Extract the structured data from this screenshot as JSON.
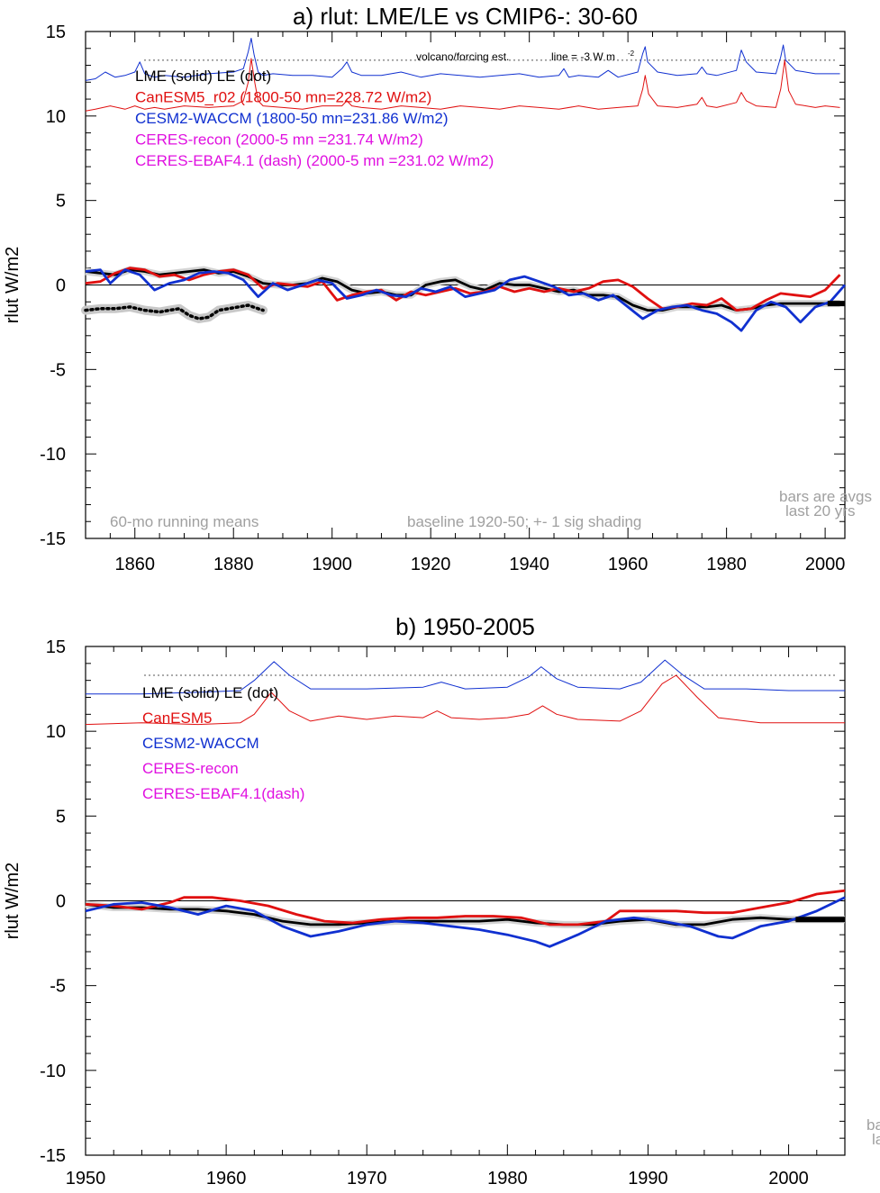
{
  "chart_data": [
    {
      "type": "line",
      "title": "a) rlut: LME/LE vs CMIP6-: 30-60",
      "ylabel": "rlut W/m2",
      "xlim": [
        1850,
        2004
      ],
      "ylim": [
        -15,
        15
      ],
      "xticks": [
        1860,
        1880,
        1900,
        1920,
        1940,
        1960,
        1980,
        2000
      ],
      "yticks": [
        15,
        10,
        5,
        0,
        -5,
        -10,
        -15
      ],
      "ytick_labels": [
        "15",
        "10",
        "5",
        "0",
        "-5",
        "-10",
        "-15"
      ],
      "legend": [
        {
          "text": "LME (solid)   LE (dot)",
          "color": "#000000"
        },
        {
          "text": "CanESM5_r02 (1800-50 mn=228.72 W/m2)",
          "color": "#e01010"
        },
        {
          "text": "CESM2-WACCM (1800-50 mn=231.86 W/m2)",
          "color": "#1030d0"
        },
        {
          "text": "CERES-recon (2000-5 mn =231.74 W/m2)",
          "color": "#e010e0"
        },
        {
          "text": "CERES-EBAF4.1 (dash) (2000-5 mn =231.02 W/m2)",
          "color": "#e010e0"
        }
      ],
      "annotations": {
        "volcano": "volcano/forcing est.",
        "line_note": "line = -3 W m",
        "line_note_sup": "-2",
        "running": "60-mo running means",
        "baseline": "baseline 1920-50; +- 1 sig shading",
        "bars1": "bars are avgs",
        "bars2": "last 20 yrs"
      },
      "forcing_line_y": 13.3,
      "series": [
        {
          "name": "LME (solid)",
          "color": "#000000",
          "x": [
            1850,
            1853,
            1856,
            1859,
            1862,
            1865,
            1868,
            1871,
            1874,
            1877,
            1880,
            1883,
            1886,
            1889,
            1892,
            1895,
            1898,
            1901,
            1904,
            1907,
            1910,
            1913,
            1916,
            1919,
            1922,
            1925,
            1928,
            1931,
            1934,
            1937,
            1940,
            1943,
            1946,
            1949,
            1952,
            1955,
            1958,
            1961,
            1964,
            1967,
            1970,
            1973,
            1976,
            1979,
            1982,
            1985,
            1988,
            1991,
            1994,
            1997,
            2000,
            2003
          ],
          "y": [
            0.8,
            0.7,
            0.6,
            0.9,
            0.8,
            0.6,
            0.7,
            0.8,
            0.9,
            0.7,
            0.8,
            0.5,
            0.1,
            0.0,
            0.0,
            0.1,
            0.4,
            0.2,
            -0.3,
            -0.5,
            -0.4,
            -0.6,
            -0.6,
            0.0,
            0.2,
            0.3,
            -0.1,
            -0.3,
            0.1,
            0.0,
            0.0,
            -0.2,
            -0.4,
            -0.3,
            -0.6,
            -0.6,
            -0.7,
            -1.2,
            -1.5,
            -1.5,
            -1.3,
            -1.3,
            -1.3,
            -1.2,
            -1.5,
            -1.4,
            -1.2,
            -1.1,
            -1.1,
            -1.1,
            -1.1,
            -1.1
          ]
        },
        {
          "name": "CanESM5",
          "color": "#e01010",
          "x": [
            1850,
            1853,
            1856,
            1859,
            1862,
            1865,
            1868,
            1871,
            1874,
            1877,
            1880,
            1883,
            1886,
            1889,
            1892,
            1895,
            1898,
            1901,
            1904,
            1907,
            1910,
            1913,
            1916,
            1919,
            1922,
            1925,
            1928,
            1931,
            1934,
            1937,
            1940,
            1943,
            1946,
            1949,
            1952,
            1955,
            1958,
            1961,
            1964,
            1967,
            1970,
            1973,
            1976,
            1979,
            1982,
            1985,
            1988,
            1991,
            1994,
            1997,
            2000,
            2003
          ],
          "y": [
            0.1,
            0.2,
            0.7,
            1.0,
            0.9,
            0.5,
            0.6,
            0.3,
            0.6,
            0.8,
            0.9,
            0.6,
            -0.2,
            0.1,
            0.0,
            -0.1,
            0.2,
            -0.9,
            -0.6,
            -0.4,
            -0.3,
            -0.9,
            -0.4,
            -0.6,
            -0.4,
            -0.2,
            -0.5,
            -0.4,
            -0.1,
            -0.4,
            -0.2,
            -0.4,
            -0.2,
            -0.4,
            -0.2,
            0.2,
            0.3,
            -0.1,
            -0.8,
            -1.4,
            -1.3,
            -1.1,
            -1.2,
            -0.8,
            -1.5,
            -1.4,
            -0.9,
            -0.5,
            -0.6,
            -0.7,
            -0.3,
            0.6
          ]
        },
        {
          "name": "CESM2-WACCM",
          "color": "#1030d0",
          "x": [
            1850,
            1853,
            1855,
            1858,
            1861,
            1864,
            1867,
            1870,
            1873,
            1876,
            1879,
            1882,
            1885,
            1888,
            1891,
            1894,
            1897,
            1900,
            1903,
            1906,
            1909,
            1912,
            1915,
            1918,
            1921,
            1924,
            1927,
            1930,
            1933,
            1936,
            1939,
            1942,
            1945,
            1948,
            1951,
            1954,
            1957,
            1960,
            1963,
            1966,
            1969,
            1972,
            1975,
            1978,
            1981,
            1983,
            1986,
            1989,
            1992,
            1995,
            1998,
            2001,
            2004
          ],
          "y": [
            0.8,
            0.9,
            0.1,
            0.9,
            0.6,
            -0.3,
            0.1,
            0.3,
            0.7,
            0.8,
            0.7,
            0.3,
            -0.7,
            0.1,
            -0.3,
            0.0,
            0.3,
            0.1,
            -0.8,
            -0.6,
            -0.3,
            -0.6,
            -0.7,
            -0.2,
            -0.4,
            -0.1,
            -0.7,
            -0.5,
            -0.3,
            0.3,
            0.5,
            0.2,
            -0.1,
            -0.6,
            -0.5,
            -0.9,
            -0.6,
            -1.3,
            -2.0,
            -1.5,
            -1.3,
            -1.2,
            -1.5,
            -1.7,
            -2.2,
            -2.7,
            -1.5,
            -1.0,
            -1.3,
            -2.2,
            -1.3,
            -1.0,
            0.0
          ]
        },
        {
          "name": "CESM2-WACCM volcano",
          "color": "#1030d0",
          "x": [
            1850,
            1852,
            1854,
            1856,
            1858,
            1860,
            1861,
            1862,
            1864,
            1866,
            1870,
            1875,
            1880,
            1882,
            1883,
            1883.6,
            1884.2,
            1885,
            1886,
            1888,
            1892,
            1896,
            1900,
            1902,
            1903,
            1904,
            1906,
            1910,
            1914,
            1918,
            1922,
            1926,
            1930,
            1934,
            1938,
            1942,
            1946,
            1947,
            1948,
            1950,
            1954,
            1956,
            1958,
            1962,
            1963,
            1963.5,
            1964,
            1966,
            1970,
            1974,
            1975,
            1976,
            1978,
            1982,
            1983,
            1984,
            1986,
            1990,
            1991,
            1991.5,
            1992,
            1994,
            1998,
            2000,
            2003
          ],
          "y": [
            12.1,
            12.2,
            12.6,
            12.3,
            12.4,
            12.6,
            13.2,
            12.5,
            12.3,
            12.4,
            12.3,
            12.5,
            12.6,
            12.8,
            13.8,
            14.6,
            13.6,
            12.6,
            12.4,
            12.5,
            12.4,
            12.4,
            12.3,
            12.8,
            13.2,
            12.6,
            12.4,
            12.4,
            12.6,
            12.3,
            12.5,
            12.4,
            12.3,
            12.4,
            12.5,
            12.3,
            12.4,
            12.8,
            12.3,
            12.4,
            12.3,
            12.7,
            12.3,
            12.6,
            13.7,
            14.1,
            13.2,
            12.6,
            12.4,
            12.5,
            12.9,
            12.5,
            12.4,
            12.7,
            13.9,
            13.2,
            12.6,
            12.5,
            13.5,
            14.2,
            13.3,
            12.7,
            12.5,
            12.5,
            12.5
          ]
        },
        {
          "name": "CanESM5 volcano",
          "color": "#e01010",
          "x": [
            1850,
            1852,
            1855,
            1858,
            1860,
            1862,
            1864,
            1866,
            1870,
            1875,
            1880,
            1882,
            1883,
            1883.6,
            1884.3,
            1885,
            1886,
            1890,
            1894,
            1898,
            1902,
            1903,
            1904,
            1906,
            1910,
            1914,
            1918,
            1922,
            1926,
            1930,
            1934,
            1938,
            1942,
            1946,
            1950,
            1954,
            1958,
            1962,
            1963,
            1963.5,
            1964.2,
            1966,
            1970,
            1974,
            1975,
            1976,
            1978,
            1982,
            1983,
            1984,
            1986,
            1990,
            1991,
            1991.8,
            1992.6,
            1994,
            1998,
            2000,
            2003
          ],
          "y": [
            10.3,
            10.4,
            10.6,
            10.4,
            10.6,
            10.4,
            10.5,
            10.4,
            10.6,
            10.5,
            10.6,
            10.9,
            12.0,
            13.4,
            12.0,
            10.9,
            10.6,
            10.5,
            10.4,
            10.6,
            10.6,
            10.9,
            10.6,
            10.5,
            10.4,
            10.6,
            10.5,
            10.4,
            10.6,
            10.5,
            10.4,
            10.6,
            10.5,
            10.4,
            10.6,
            10.4,
            10.5,
            10.6,
            11.6,
            12.4,
            11.3,
            10.6,
            10.5,
            10.7,
            11.1,
            10.6,
            10.5,
            10.8,
            11.4,
            10.9,
            10.6,
            10.5,
            11.6,
            13.3,
            11.5,
            10.7,
            10.5,
            10.6,
            10.5
          ]
        },
        {
          "name": "LE (dot)",
          "color": "#000000",
          "x": [
            1850,
            1853,
            1856,
            1859,
            1862,
            1865,
            1867,
            1869,
            1871,
            1873,
            1875,
            1877,
            1879,
            1881,
            1883,
            1885,
            1886
          ],
          "y": [
            -1.5,
            -1.4,
            -1.4,
            -1.3,
            -1.5,
            -1.6,
            -1.5,
            -1.4,
            -1.8,
            -2.0,
            -1.9,
            -1.5,
            -1.4,
            -1.3,
            -1.2,
            -1.4,
            -1.5
          ]
        }
      ]
    },
    {
      "type": "line",
      "title": "b) 1950-2005",
      "ylabel": "rlut W/m2",
      "xlim": [
        1950,
        2004
      ],
      "ylim": [
        -15,
        15
      ],
      "xticks": [
        1950,
        1960,
        1970,
        1980,
        1990,
        2000
      ],
      "yticks": [
        15,
        10,
        5,
        0,
        -5,
        -10,
        -15
      ],
      "ytick_labels": [
        "15",
        "10",
        "5",
        "0",
        "-5",
        "-10",
        "-15"
      ],
      "legend": [
        {
          "text": "LME (solid)      LE (dot)",
          "color": "#000000"
        },
        {
          "text": "CanESM5",
          "color": "#e01010"
        },
        {
          "text": "CESM2-WACCM",
          "color": "#1030d0"
        },
        {
          "text": "CERES-recon",
          "color": "#e010e0"
        },
        {
          "text": "CERES-EBAF4.1(dash)",
          "color": "#e010e0"
        }
      ],
      "annotations": {
        "bars1": "ba",
        "bars2": "la"
      },
      "forcing_line_y": 13.3,
      "series": [
        {
          "name": "LME (solid)",
          "color": "#000000",
          "x": [
            1950,
            1952,
            1954,
            1956,
            1958,
            1960,
            1962,
            1964,
            1966,
            1968,
            1970,
            1972,
            1974,
            1976,
            1978,
            1980,
            1982,
            1984,
            1986,
            1988,
            1990,
            1992,
            1994,
            1996,
            1998,
            2000,
            2002,
            2004
          ],
          "y": [
            -0.2,
            -0.4,
            -0.4,
            -0.5,
            -0.5,
            -0.6,
            -0.8,
            -1.2,
            -1.4,
            -1.4,
            -1.3,
            -1.2,
            -1.2,
            -1.2,
            -1.2,
            -1.1,
            -1.3,
            -1.4,
            -1.4,
            -1.2,
            -1.1,
            -1.4,
            -1.4,
            -1.1,
            -1.0,
            -1.1,
            -1.1,
            -1.1
          ]
        },
        {
          "name": "CanESM5",
          "color": "#e01010",
          "x": [
            1950,
            1952,
            1954,
            1956,
            1957,
            1959,
            1961,
            1963,
            1965,
            1967,
            1969,
            1971,
            1973,
            1975,
            1977,
            1979,
            1981,
            1983,
            1985,
            1987,
            1988,
            1990,
            1992,
            1994,
            1996,
            1998,
            2000,
            2002,
            2004
          ],
          "y": [
            -0.2,
            -0.3,
            -0.5,
            -0.1,
            0.2,
            0.2,
            0.0,
            -0.3,
            -0.8,
            -1.2,
            -1.3,
            -1.1,
            -1.0,
            -1.0,
            -0.9,
            -0.9,
            -1.0,
            -1.4,
            -1.4,
            -1.2,
            -0.6,
            -0.6,
            -0.6,
            -0.7,
            -0.7,
            -0.4,
            -0.1,
            0.4,
            0.6
          ]
        },
        {
          "name": "CESM2-WACCM",
          "color": "#1030d0",
          "x": [
            1950,
            1952,
            1954,
            1956,
            1958,
            1960,
            1962,
            1964,
            1966,
            1968,
            1970,
            1972,
            1974,
            1976,
            1978,
            1980,
            1982,
            1983,
            1985,
            1987,
            1989,
            1991,
            1993,
            1995,
            1996,
            1998,
            2000,
            2002,
            2004
          ],
          "y": [
            -0.6,
            -0.2,
            -0.1,
            -0.4,
            -0.8,
            -0.3,
            -0.6,
            -1.5,
            -2.1,
            -1.8,
            -1.4,
            -1.2,
            -1.3,
            -1.5,
            -1.7,
            -2.0,
            -2.4,
            -2.7,
            -2.0,
            -1.2,
            -1.0,
            -1.2,
            -1.5,
            -2.1,
            -2.2,
            -1.5,
            -1.2,
            -0.6,
            0.2
          ]
        },
        {
          "name": "CESM2-WACCM volcano",
          "color": "#1030d0",
          "x": [
            1950,
            1954,
            1958,
            1961,
            1962,
            1963.4,
            1964.5,
            1966,
            1970,
            1974,
            1975.3,
            1977,
            1980,
            1981.5,
            1982.4,
            1983.5,
            1985,
            1988,
            1989.5,
            1991.2,
            1992.5,
            1994,
            1997,
            2000,
            2004
          ],
          "y": [
            12.2,
            12.2,
            12.3,
            12.4,
            13.0,
            14.1,
            13.3,
            12.5,
            12.5,
            12.6,
            12.9,
            12.5,
            12.6,
            13.2,
            13.8,
            13.1,
            12.6,
            12.5,
            12.9,
            14.2,
            13.3,
            12.5,
            12.5,
            12.4,
            12.4
          ]
        },
        {
          "name": "CanESM5 volcano",
          "color": "#e01010",
          "x": [
            1950,
            1954,
            1958,
            1961,
            1962,
            1963.2,
            1964.5,
            1966,
            1968,
            1970,
            1972,
            1974,
            1975,
            1976,
            1978,
            1980,
            1981.5,
            1982.5,
            1983.5,
            1985,
            1988,
            1989.5,
            1991,
            1992,
            1993.5,
            1995,
            1998,
            2000,
            2004
          ],
          "y": [
            10.4,
            10.5,
            10.4,
            10.5,
            11.0,
            12.3,
            11.2,
            10.6,
            10.9,
            10.7,
            10.9,
            10.8,
            11.2,
            10.8,
            10.7,
            10.8,
            11.0,
            11.5,
            11.0,
            10.7,
            10.6,
            11.2,
            12.8,
            13.3,
            12.0,
            10.8,
            10.5,
            10.5,
            10.5
          ]
        }
      ]
    }
  ]
}
